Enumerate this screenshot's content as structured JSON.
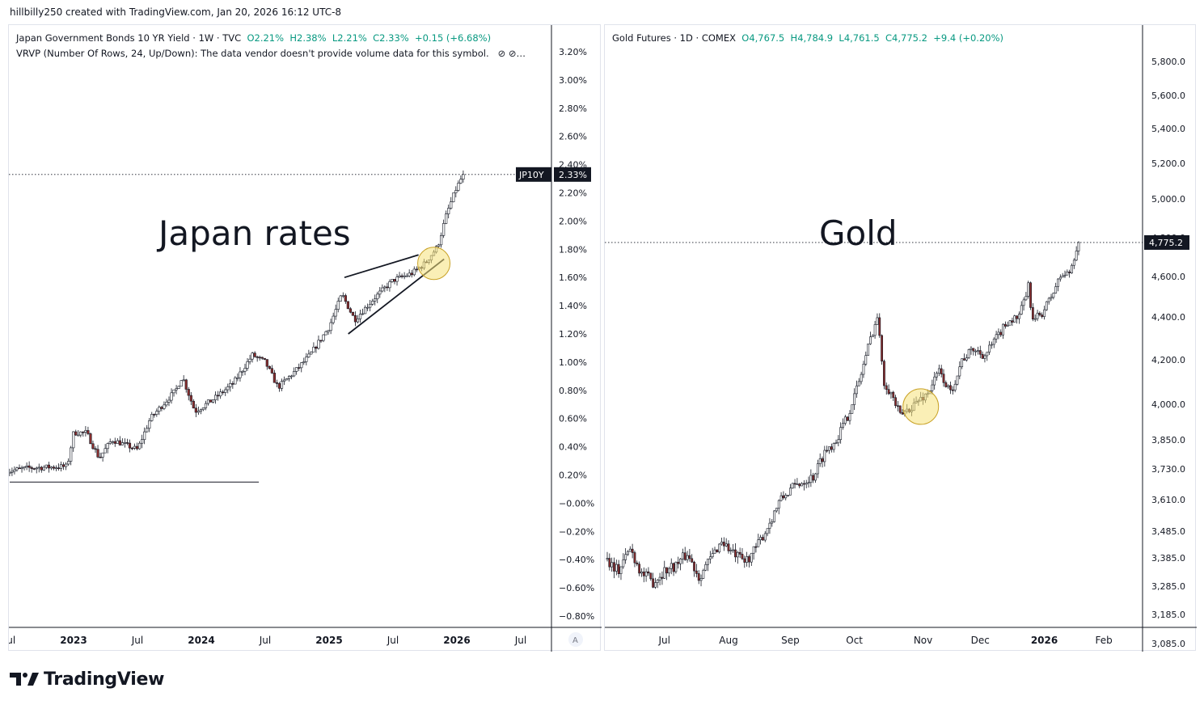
{
  "header": {
    "text": "hillbilly250 created with TradingView.com, Jan 20, 2026 16:12 UTC-8"
  },
  "footer": {
    "brand": "TradingView",
    "logo_icon": "tradingview-logo-icon"
  },
  "colors": {
    "up": "#089981",
    "down": "#8b2d2d",
    "wick": "#131722",
    "highlight": "#f5e27a",
    "axis_text": "#131722",
    "price_label_bg": "#131722"
  },
  "left": {
    "legend": {
      "symbol": "Japan Government Bonds 10 YR Yield · 1W · TVC",
      "open": "O2.21%",
      "high": "H2.38%",
      "low": "L2.21%",
      "close": "C2.33%",
      "change": "+0.15 (+6.68%)"
    },
    "indicator": "VRVP (Number Of Rows, 24, Up/Down): The data vendor doesn't provide volume data for this symbol.",
    "indicator_icons": "⊘  ⊘…",
    "annotation": "Japan rates",
    "price_tag": {
      "ticker": "JP10Y",
      "value": "2.33%"
    },
    "scale_button": "A",
    "chart_data": {
      "type": "candlestick",
      "y_ticks": [
        "3.20%",
        "3.00%",
        "2.80%",
        "2.60%",
        "2.40%",
        "2.20%",
        "2.00%",
        "1.80%",
        "1.60%",
        "1.40%",
        "1.20%",
        "1.00%",
        "0.80%",
        "0.60%",
        "0.40%",
        "0.20%",
        "−0.00%",
        "−0.20%",
        "−0.40%",
        "−0.60%",
        "−0.80%"
      ],
      "x_ticks": [
        "Jul",
        "2023",
        "Jul",
        "2024",
        "Jul",
        "2025",
        "Jul",
        "2026",
        "Jul"
      ],
      "ylim": [
        -0.8,
        3.2
      ],
      "last": 2.33,
      "anchors": [
        [
          2022.5,
          0.23
        ],
        [
          2022.65,
          0.25
        ],
        [
          2022.95,
          0.26
        ],
        [
          2023.0,
          0.5
        ],
        [
          2023.1,
          0.5
        ],
        [
          2023.2,
          0.32
        ],
        [
          2023.3,
          0.45
        ],
        [
          2023.5,
          0.38
        ],
        [
          2023.6,
          0.6
        ],
        [
          2023.8,
          0.8
        ],
        [
          2023.85,
          0.9
        ],
        [
          2023.95,
          0.65
        ],
        [
          2024.1,
          0.74
        ],
        [
          2024.25,
          0.85
        ],
        [
          2024.4,
          1.05
        ],
        [
          2024.5,
          1.0
        ],
        [
          2024.6,
          0.82
        ],
        [
          2024.75,
          0.95
        ],
        [
          2024.85,
          1.05
        ],
        [
          2025.0,
          1.25
        ],
        [
          2025.1,
          1.48
        ],
        [
          2025.2,
          1.3
        ],
        [
          2025.35,
          1.45
        ],
        [
          2025.5,
          1.58
        ],
        [
          2025.65,
          1.63
        ],
        [
          2025.75,
          1.7
        ],
        [
          2025.85,
          1.82
        ],
        [
          2025.92,
          2.05
        ],
        [
          2025.99,
          2.22
        ],
        [
          2026.05,
          2.33
        ]
      ],
      "trendlines": [
        {
          "name": "support-line",
          "from": [
            2022.5,
            0.15
          ],
          "to": [
            2024.45,
            0.15
          ]
        },
        {
          "name": "upper-wedge-line",
          "from": [
            2025.12,
            1.6
          ],
          "to": [
            2025.7,
            1.76
          ]
        },
        {
          "name": "lower-wedge-line",
          "from": [
            2025.15,
            1.2
          ],
          "to": [
            2025.9,
            1.73
          ]
        }
      ],
      "highlight_circle": {
        "x": 2025.82,
        "y": 1.7
      }
    }
  },
  "right": {
    "legend": {
      "symbol": "Gold Futures · 1D · COMEX",
      "open": "O4,767.5",
      "high": "H4,784.9",
      "low": "L4,761.5",
      "close": "C4,775.2",
      "change": "+9.4 (+0.20%)"
    },
    "annotation": "Gold",
    "price_tag": {
      "value": "4,775.2"
    },
    "chart_data": {
      "type": "candlestick",
      "y_ticks": [
        {
          "label": "5,800.0",
          "y": 45
        },
        {
          "label": "5,600.0",
          "y": 87
        },
        {
          "label": "5,400.0",
          "y": 128
        },
        {
          "label": "5,200.0",
          "y": 171
        },
        {
          "label": "5,000.0",
          "y": 215
        },
        {
          "label": "4,800.0",
          "y": 263
        },
        {
          "label": "4,600.0",
          "y": 311
        },
        {
          "label": "4,400.0",
          "y": 361
        },
        {
          "label": "4,200.0",
          "y": 414
        },
        {
          "label": "4,000.0",
          "y": 469
        },
        {
          "label": "3,850.0",
          "y": 513
        },
        {
          "label": "3,730.0",
          "y": 549
        },
        {
          "label": "3,610.0",
          "y": 587
        },
        {
          "label": "3,485.0",
          "y": 626
        },
        {
          "label": "3,385.0",
          "y": 659
        },
        {
          "label": "3,285.0",
          "y": 694
        },
        {
          "label": "3,185.0",
          "y": 729
        },
        {
          "label": "3,085.0",
          "y": 765
        }
      ],
      "x_ticks": [
        "Jul",
        "Aug",
        "Sep",
        "Oct",
        "Nov",
        "Dec",
        "2026",
        "Feb"
      ],
      "last": 4775.2,
      "anchors": [
        [
          0,
          3380
        ],
        [
          5,
          3340
        ],
        [
          10,
          3420
        ],
        [
          15,
          3330
        ],
        [
          20,
          3300
        ],
        [
          25,
          3340
        ],
        [
          30,
          3360
        ],
        [
          35,
          3400
        ],
        [
          40,
          3320
        ],
        [
          45,
          3380
        ],
        [
          50,
          3450
        ],
        [
          55,
          3400
        ],
        [
          60,
          3370
        ],
        [
          65,
          3420
        ],
        [
          70,
          3500
        ],
        [
          75,
          3600
        ],
        [
          80,
          3650
        ],
        [
          85,
          3680
        ],
        [
          90,
          3700
        ],
        [
          95,
          3800
        ],
        [
          100,
          3850
        ],
        [
          105,
          3950
        ],
        [
          110,
          4100
        ],
        [
          115,
          4300
        ],
        [
          118,
          4400
        ],
        [
          121,
          4100
        ],
        [
          124,
          4050
        ],
        [
          128,
          3950
        ],
        [
          134,
          4000
        ],
        [
          140,
          4050
        ],
        [
          145,
          4150
        ],
        [
          150,
          4050
        ],
        [
          155,
          4200
        ],
        [
          160,
          4250
        ],
        [
          165,
          4220
        ],
        [
          170,
          4300
        ],
        [
          175,
          4380
        ],
        [
          180,
          4400
        ],
        [
          184,
          4550
        ],
        [
          186,
          4380
        ],
        [
          190,
          4420
        ],
        [
          194,
          4500
        ],
        [
          198,
          4600
        ],
        [
          202,
          4620
        ],
        [
          206,
          4780
        ]
      ]
    }
  }
}
